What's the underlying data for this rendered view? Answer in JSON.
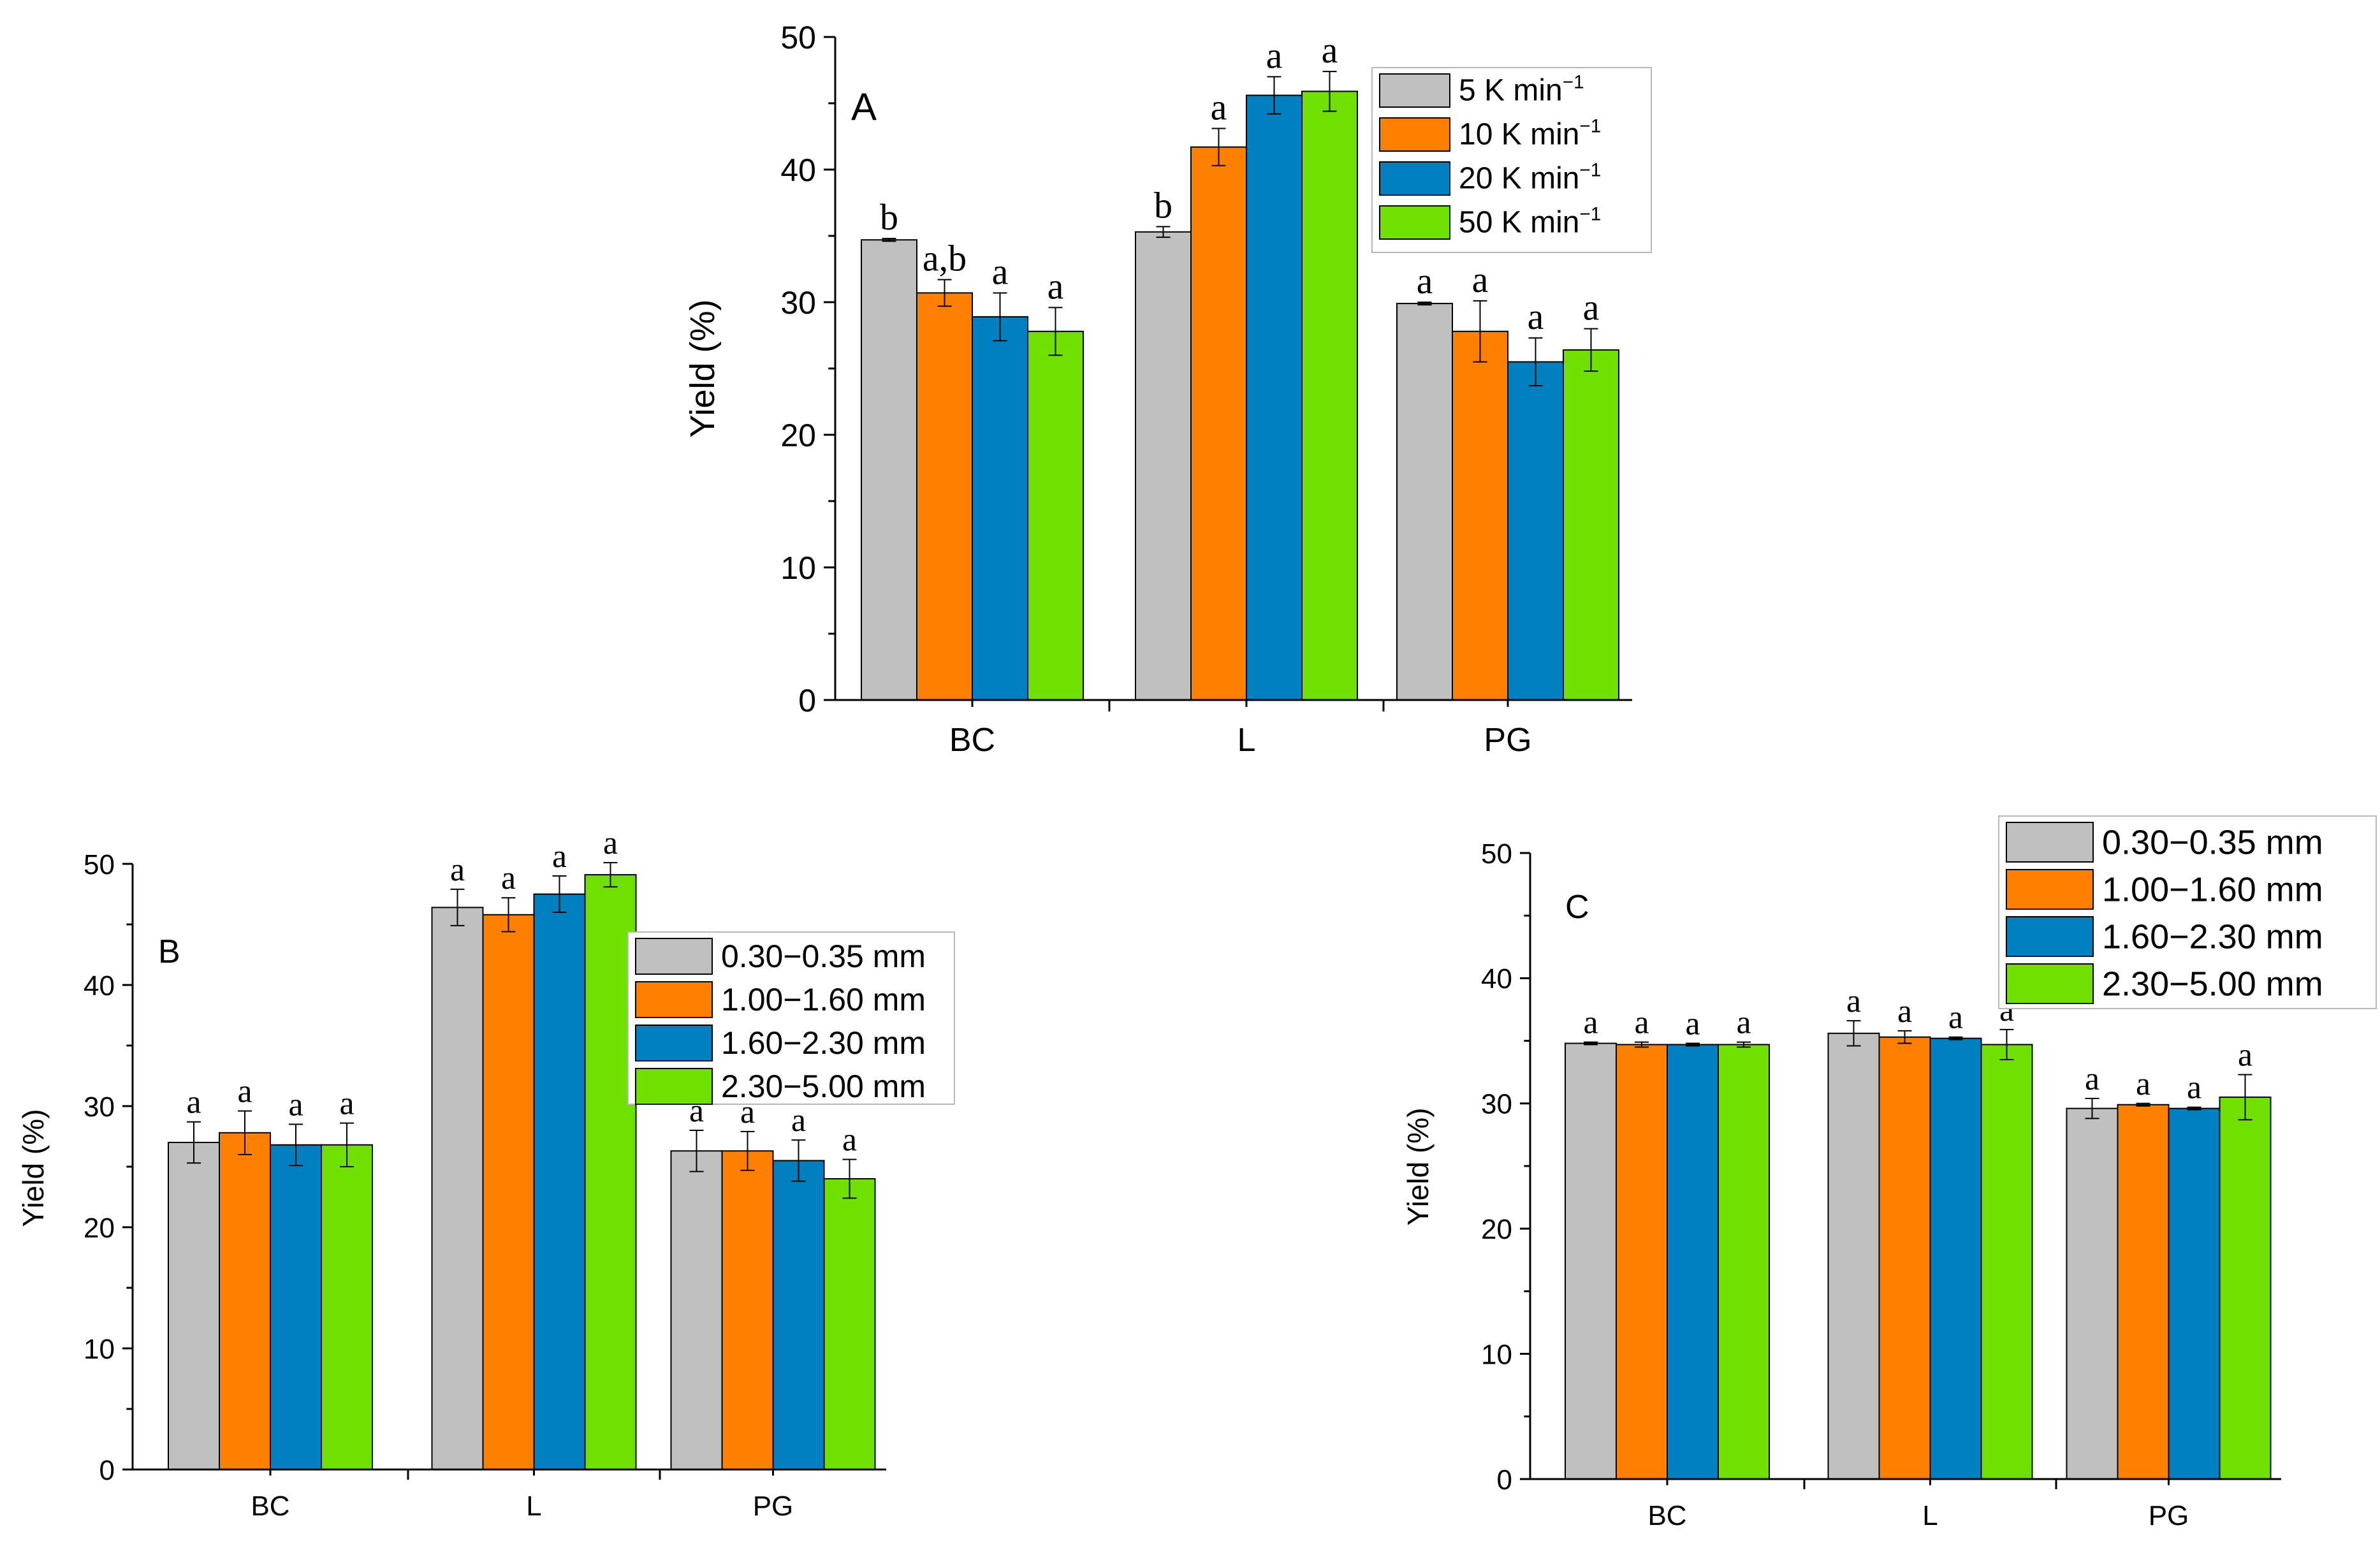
{
  "colors": {
    "series": [
      "#c0c0c0",
      "#ff8000",
      "#0080c0",
      "#70e000"
    ],
    "axis": "#000000",
    "background": "#ffffff"
  },
  "chart_data": [
    {
      "type": "bar",
      "panel_label": "A",
      "title": "",
      "xlabel": "",
      "ylabel": "Yield (%)",
      "ylim": [
        0,
        50
      ],
      "yticks": [
        0,
        10,
        20,
        30,
        40,
        50
      ],
      "categories": [
        "BC",
        "L",
        "PG"
      ],
      "legend_position": "top-right",
      "series": [
        {
          "name": "5   K min",
          "unit_sup": "−1",
          "values": [
            34.7,
            35.3,
            29.9
          ],
          "errors": [
            0.1,
            0.4,
            0.1
          ],
          "labels": [
            "b",
            "b",
            "a"
          ]
        },
        {
          "name": "10  K min",
          "unit_sup": "−1",
          "values": [
            30.7,
            41.7,
            27.8
          ],
          "errors": [
            1.0,
            1.4,
            2.3
          ],
          "labels": [
            "a,b",
            "a",
            "a"
          ]
        },
        {
          "name": "20  K min",
          "unit_sup": "−1",
          "values": [
            28.9,
            45.6,
            25.5
          ],
          "errors": [
            1.8,
            1.4,
            1.8
          ],
          "labels": [
            "a",
            "a",
            "a"
          ]
        },
        {
          "name": "50  K min",
          "unit_sup": "−1",
          "values": [
            27.8,
            45.9,
            26.4
          ],
          "errors": [
            1.8,
            1.5,
            1.6
          ],
          "labels": [
            "a",
            "a",
            "a"
          ]
        }
      ]
    },
    {
      "type": "bar",
      "panel_label": "B",
      "title": "",
      "xlabel": "",
      "ylabel": "Yield (%)",
      "ylim": [
        0,
        50
      ],
      "yticks": [
        0,
        10,
        20,
        30,
        40,
        50
      ],
      "categories": [
        "BC",
        "L",
        "PG"
      ],
      "legend_position": "right",
      "series": [
        {
          "name": "0.30−0.35 mm",
          "values": [
            27.0,
            46.4,
            26.3
          ],
          "errors": [
            1.7,
            1.5,
            1.7
          ],
          "labels": [
            "a",
            "a",
            "a"
          ]
        },
        {
          "name": "1.00−1.60 mm",
          "values": [
            27.8,
            45.8,
            26.3
          ],
          "errors": [
            1.8,
            1.4,
            1.6
          ],
          "labels": [
            "a",
            "a",
            "a"
          ]
        },
        {
          "name": "1.60−2.30 mm",
          "values": [
            26.8,
            47.5,
            25.5
          ],
          "errors": [
            1.7,
            1.5,
            1.7
          ],
          "labels": [
            "a",
            "a",
            "a"
          ]
        },
        {
          "name": "2.30−5.00 mm",
          "values": [
            26.8,
            49.1,
            24.0
          ],
          "errors": [
            1.8,
            1.0,
            1.6
          ],
          "labels": [
            "a",
            "a",
            "a"
          ]
        }
      ]
    },
    {
      "type": "bar",
      "panel_label": "C",
      "title": "",
      "xlabel": "",
      "ylabel": "Yield (%)",
      "ylim": [
        0,
        50
      ],
      "yticks": [
        0,
        10,
        20,
        30,
        40,
        50
      ],
      "categories": [
        "BC",
        "L",
        "PG"
      ],
      "legend_position": "top-right",
      "series": [
        {
          "name": "0.30−0.35 mm",
          "values": [
            34.8,
            35.6,
            29.6
          ],
          "errors": [
            0.1,
            1.0,
            0.8
          ],
          "labels": [
            "a",
            "a",
            "a"
          ]
        },
        {
          "name": "1.00−1.60 mm",
          "values": [
            34.7,
            35.3,
            29.9
          ],
          "errors": [
            0.2,
            0.5,
            0.1
          ],
          "labels": [
            "a",
            "a",
            "a"
          ]
        },
        {
          "name": "1.60−2.30 mm",
          "values": [
            34.7,
            35.2,
            29.6
          ],
          "errors": [
            0.1,
            0.1,
            0.1
          ],
          "labels": [
            "a",
            "a",
            "a"
          ]
        },
        {
          "name": "2.30−5.00 mm",
          "values": [
            34.7,
            34.7,
            30.5
          ],
          "errors": [
            0.2,
            1.2,
            1.8
          ],
          "labels": [
            "a",
            "a",
            "a"
          ]
        }
      ]
    }
  ]
}
